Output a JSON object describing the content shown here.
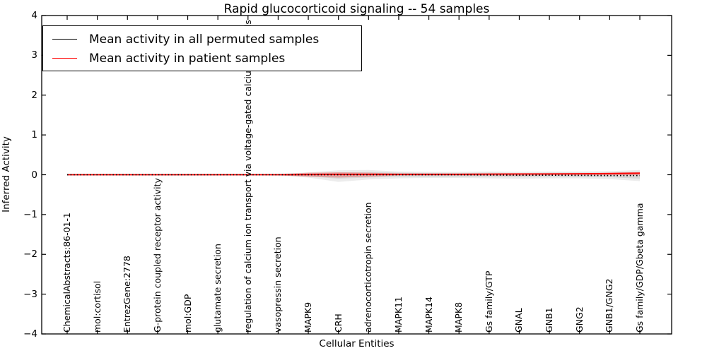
{
  "chart_data": {
    "type": "line",
    "title": "Rapid glucocorticoid signaling -- 54 samples",
    "xlabel": "Cellular Entities",
    "ylabel": "Inferred Activity",
    "ylim": [
      -4,
      4
    ],
    "ytick_values": [
      4,
      3,
      2,
      1,
      0,
      -1,
      -2,
      -3,
      -4
    ],
    "ytick_labels": [
      "4",
      "3",
      "2",
      "1",
      "0",
      "−1",
      "−2",
      "−3",
      "−4"
    ],
    "grid": false,
    "legend_position": "upper left",
    "categories": [
      "ChemicalAbstracts:86-01-1",
      "mol:cortisol",
      "EntrezGene:2778",
      "G-protein coupled receptor activity",
      "mol:GDP",
      "glutamate secretion",
      "regulation of calcium ion transport via voltage-gated calcium channels",
      "vasopressin secretion",
      "MAPK9",
      "CRH",
      "adrenocorticotropin secretion",
      "MAPK11",
      "MAPK14",
      "MAPK8",
      "Gs family/GTP",
      "GNAL",
      "GNB1",
      "GNG2",
      "GNB1/GNG2",
      "Gs family/GDP/Gbeta gamma"
    ],
    "series": [
      {
        "name": "Mean activity in all permuted samples",
        "color": "#000000",
        "linestyle": "dotted",
        "values": [
          0,
          0,
          0,
          0,
          0,
          0,
          0,
          0,
          0,
          0,
          0,
          0,
          0,
          0,
          -0.005,
          -0.01,
          -0.01,
          -0.015,
          -0.02,
          -0.02
        ]
      },
      {
        "name": "Mean activity in patient samples",
        "color": "#ff0000",
        "linestyle": "solid",
        "values": [
          0,
          0,
          0,
          0,
          0,
          0,
          0,
          0,
          0.005,
          0.01,
          0.01,
          0.01,
          0.01,
          0.01,
          0.015,
          0.02,
          0.02,
          0.025,
          0.03,
          0.04
        ]
      }
    ],
    "bands": [
      {
        "name": "permuted samples outer range",
        "color": "#808080",
        "opacity": 0.15,
        "upper": [
          0.01,
          0.01,
          0.01,
          0.01,
          0.01,
          0.01,
          0.01,
          0.02,
          0.06,
          0.11,
          0.12,
          0.08,
          0.07,
          0.07,
          0.08,
          0.07,
          0.08,
          0.08,
          0.09,
          0.12
        ],
        "lower": [
          -0.01,
          -0.01,
          -0.01,
          -0.01,
          -0.01,
          -0.01,
          -0.01,
          -0.02,
          -0.07,
          -0.18,
          -0.12,
          -0.09,
          -0.08,
          -0.08,
          -0.09,
          -0.1,
          -0.09,
          -0.09,
          -0.11,
          -0.16
        ]
      },
      {
        "name": "permuted samples inner range",
        "color": "#808080",
        "opacity": 0.18,
        "upper": [
          0.005,
          0.005,
          0.005,
          0.005,
          0.005,
          0.005,
          0.005,
          0.01,
          0.03,
          0.06,
          0.07,
          0.05,
          0.04,
          0.04,
          0.05,
          0.04,
          0.05,
          0.05,
          0.05,
          0.08
        ],
        "lower": [
          -0.005,
          -0.005,
          -0.005,
          -0.005,
          -0.005,
          -0.005,
          -0.005,
          -0.01,
          -0.04,
          -0.1,
          -0.07,
          -0.05,
          -0.05,
          -0.05,
          -0.05,
          -0.06,
          -0.05,
          -0.05,
          -0.06,
          -0.1
        ]
      },
      {
        "name": "patient samples range",
        "color": "#ff0000",
        "opacity": 0.25,
        "upper": [
          0.003,
          0.003,
          0.003,
          0.003,
          0.003,
          0.003,
          0.003,
          0.01,
          0.05,
          0.06,
          0.05,
          0.03,
          0.03,
          0.03,
          0.03,
          0.03,
          0.04,
          0.04,
          0.05,
          0.06
        ],
        "lower": [
          -0.003,
          -0.003,
          -0.003,
          -0.003,
          -0.003,
          -0.003,
          -0.003,
          -0.01,
          -0.05,
          -0.07,
          -0.05,
          -0.02,
          -0.02,
          -0.02,
          -0.02,
          -0.02,
          -0.01,
          -0.01,
          -0.01,
          -0.01
        ]
      }
    ]
  }
}
